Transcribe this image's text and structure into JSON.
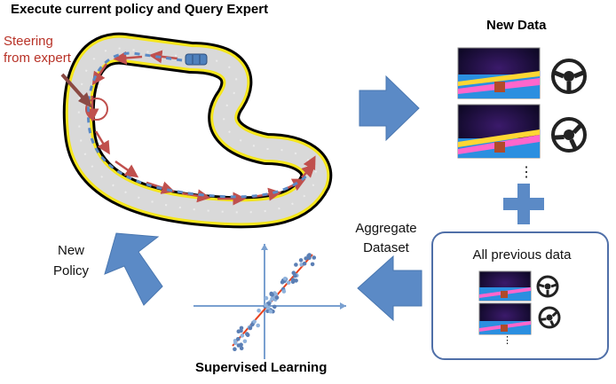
{
  "labels": {
    "main_title": "Execute current policy and Query Expert",
    "steering_line1": "Steering",
    "steering_line2": "from expert",
    "new_data": "New Data",
    "dots_new": "⋮",
    "all_previous": "All previous data",
    "dots_prev": "⋮",
    "aggregate_line1": "Aggregate",
    "aggregate_line2": "Dataset",
    "new_line1": "New",
    "new_line2": "Policy",
    "supervised": "Supervised Learning"
  },
  "colors": {
    "arrow_blue": "#5b8ac6",
    "arrow_red": "#c0504d",
    "track_yellow": "#f5e61c",
    "regression_line": "#e8401c",
    "panel_border": "#4f6fa8"
  },
  "icons": [
    "steering-wheel-icon",
    "plus-icon",
    "right-arrow-icon",
    "left-arrow-icon",
    "up-left-arrow-icon"
  ]
}
